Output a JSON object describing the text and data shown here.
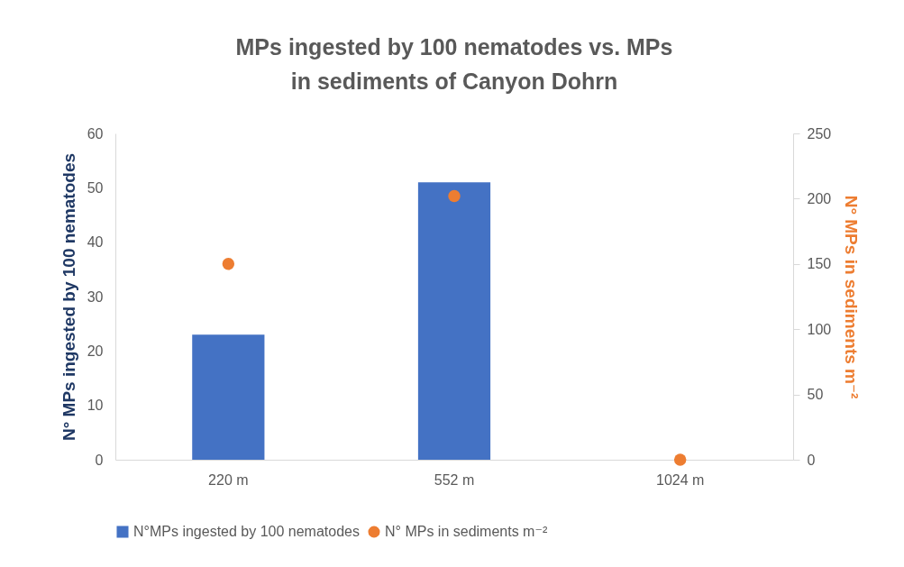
{
  "chart_data": {
    "type": "bar",
    "title": "MPs ingested by 100 nematodes vs. MPs in sediments of Canyon Dohrn",
    "categories": [
      "220 m",
      "552 m",
      "1024 m"
    ],
    "series": [
      {
        "name": "N°MPs ingested by 100 nematodes",
        "color": "#4472c4",
        "values": [
          23,
          51,
          0
        ]
      },
      {
        "name": "N° MPs in sediments m⁻²",
        "type": "scatter",
        "axis": "y2",
        "color": "#ed7d31",
        "values": [
          150,
          202,
          0
        ]
      }
    ],
    "ylabel": "N° MPs ingested by 100 nematodes",
    "y2label": "N° MPs in sediments m⁻²",
    "ylim": [
      0,
      60
    ],
    "yticks": [
      0,
      10,
      20,
      30,
      40,
      50,
      60
    ],
    "y2lim": [
      0,
      250
    ],
    "y2ticks": [
      0,
      50,
      100,
      150,
      200,
      250
    ],
    "legend": "bottom",
    "marker": "circle",
    "grid": false
  }
}
